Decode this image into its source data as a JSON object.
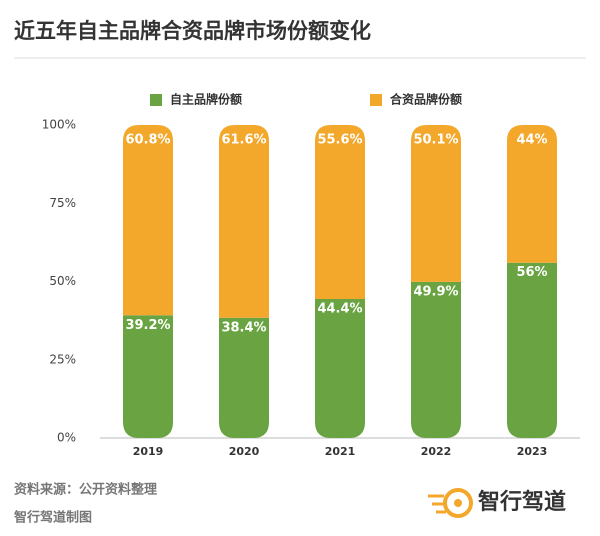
{
  "chart_data": {
    "type": "stacked_bar",
    "title": "近五年自主品牌合资品牌市场份额变化",
    "categories": [
      "2019",
      "2020",
      "2021",
      "2022",
      "2023"
    ],
    "series": [
      {
        "name": "自主品牌份额",
        "color": "#6aa442",
        "values": [
          39.2,
          38.4,
          44.4,
          49.9,
          56
        ],
        "value_labels": [
          "39.2%",
          "38.4%",
          "44.4%",
          "49.9%",
          "56%"
        ]
      },
      {
        "name": "合资品牌份额",
        "color": "#f3a72b",
        "values": [
          60.8,
          61.6,
          55.6,
          50.1,
          44
        ],
        "value_labels": [
          "60.8%",
          "61.6%",
          "55.6%",
          "50.1%",
          "44%"
        ]
      }
    ],
    "ylim": [
      0,
      100
    ],
    "yticks": [
      {
        "value": 0,
        "label": "0%"
      },
      {
        "value": 25,
        "label": "25%"
      },
      {
        "value": 50,
        "label": "50%"
      },
      {
        "value": 75,
        "label": "75%"
      },
      {
        "value": 100,
        "label": "100%"
      }
    ],
    "legend": "top",
    "source": "资料来源：公开资料整理",
    "credit": "智行驾道制图",
    "logo": "智行驾道"
  }
}
